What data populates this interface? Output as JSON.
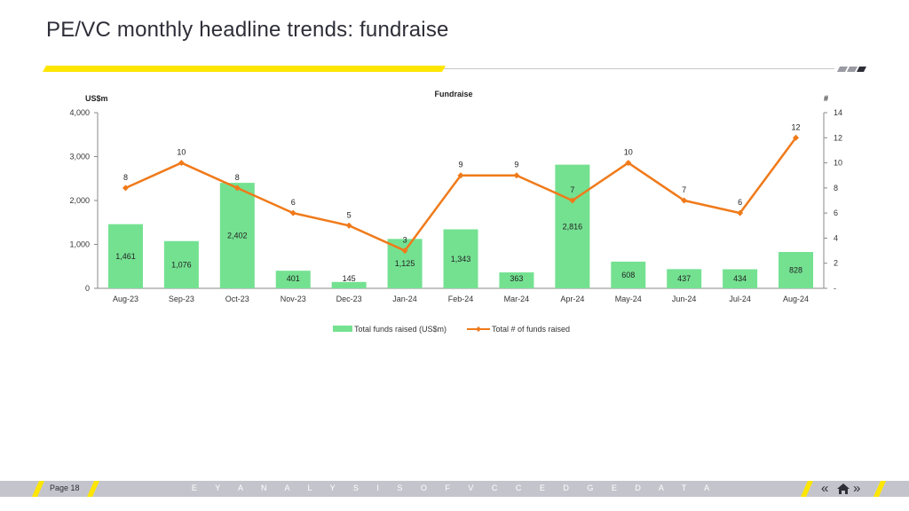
{
  "page": {
    "title": "PE/VC monthly headline trends: fundraise"
  },
  "footer": {
    "page_label": "Page 18",
    "tagline": "E Y   A N A L Y S I S   O F   V C C E D G E   D A T A",
    "prev_icon": "double-chevron-left-icon",
    "home_icon": "home-icon",
    "next_icon": "double-chevron-right-icon"
  },
  "colors": {
    "accent_yellow": "#ffe600",
    "bar_green": "#74e191",
    "line_orange": "#f07a1a",
    "footer_grey": "#c4c5cc",
    "title_dark": "#2e2e38"
  },
  "chart_data": {
    "type": "bar",
    "title": "Fundraise",
    "ylabel_left": "US$m",
    "ylabel_right": "#",
    "categories": [
      "Aug-23",
      "Sep-23",
      "Oct-23",
      "Nov-23",
      "Dec-23",
      "Jan-24",
      "Feb-24",
      "Mar-24",
      "Apr-24",
      "May-24",
      "Jun-24",
      "Jul-24",
      "Aug-24"
    ],
    "ylim_left": [
      0,
      4000
    ],
    "yticks_left": [
      "0",
      "1,000",
      "2,000",
      "3,000",
      "4,000"
    ],
    "ylim_right": [
      0,
      14
    ],
    "yticks_right": [
      "-",
      "2",
      "4",
      "6",
      "8",
      "10",
      "12",
      "14"
    ],
    "series": [
      {
        "name": "Total funds raised (US$m)",
        "kind": "bar",
        "values": [
          1461,
          1076,
          2402,
          401,
          145,
          1125,
          1343,
          363,
          2816,
          608,
          437,
          434,
          828
        ],
        "labels": [
          "1,461",
          "1,076",
          "2,402",
          "401",
          "145",
          "1,125",
          "1,343",
          "363",
          "2,816",
          "608",
          "437",
          "434",
          "828"
        ]
      },
      {
        "name": "Total # of funds raised",
        "kind": "line",
        "values": [
          8,
          10,
          8,
          6,
          5,
          3,
          9,
          9,
          7,
          10,
          7,
          6,
          12
        ],
        "labels": [
          "8",
          "10",
          "8",
          "6",
          "5",
          "3",
          "9",
          "9",
          "7",
          "10",
          "7",
          "6",
          "12"
        ]
      }
    ],
    "grid": false,
    "legend": "bottom-center"
  }
}
